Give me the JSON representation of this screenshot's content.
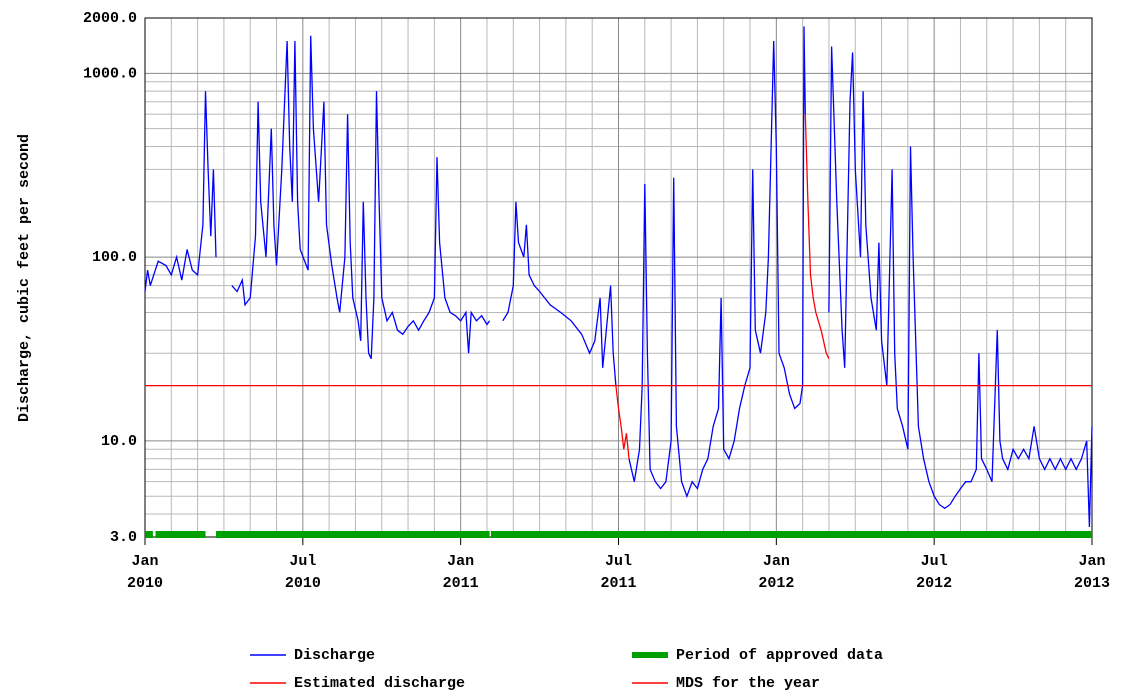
{
  "chart_data": {
    "type": "line",
    "y_label": "Discharge, cubic feet per second",
    "log_y": true,
    "ylim": [
      3,
      2000
    ],
    "yticks": [
      {
        "value": 3,
        "label": "3.0"
      },
      {
        "value": 10,
        "label": "10.0"
      },
      {
        "value": 100,
        "label": "100.0"
      },
      {
        "value": 1000,
        "label": "1000.0"
      },
      {
        "value": 2000,
        "label": "2000.0"
      }
    ],
    "y_minor_grid": [
      4,
      5,
      6,
      7,
      8,
      9,
      20,
      30,
      40,
      50,
      60,
      70,
      80,
      90,
      200,
      300,
      400,
      500,
      600,
      700,
      800,
      900
    ],
    "xlim": [
      0,
      36
    ],
    "xticks": [
      {
        "value": 0,
        "label": "Jan\n2010"
      },
      {
        "value": 6,
        "label": "Jul\n2010"
      },
      {
        "value": 12,
        "label": "Jan\n2011"
      },
      {
        "value": 18,
        "label": "Jul\n2011"
      },
      {
        "value": 24,
        "label": "Jan\n2012"
      },
      {
        "value": 30,
        "label": "Jul\n2012"
      },
      {
        "value": 36,
        "label": "Jan\n2013"
      }
    ],
    "x_minor_grid": [
      1,
      2,
      3,
      4,
      5,
      7,
      8,
      9,
      10,
      11,
      13,
      14,
      15,
      16,
      17,
      19,
      20,
      21,
      22,
      23,
      25,
      26,
      27,
      28,
      29,
      31,
      32,
      33,
      34,
      35
    ],
    "grid": true,
    "series": [
      {
        "name": "Discharge",
        "color": "#0000ff",
        "x": [
          0,
          0.1,
          0.2,
          0.5,
          0.8,
          1.0,
          1.2,
          1.4,
          1.6,
          1.8,
          2.0,
          2.2,
          2.3,
          2.4,
          2.5,
          2.6,
          2.7,
          3.0,
          3.3,
          3.5,
          3.7,
          3.8,
          4.0,
          4.2,
          4.3,
          4.4,
          4.6,
          4.8,
          4.9,
          5.0,
          5.2,
          5.4,
          5.5,
          5.6,
          5.7,
          5.8,
          5.9,
          6.2,
          6.3,
          6.4,
          6.6,
          6.8,
          6.9,
          7.1,
          7.3,
          7.4,
          7.6,
          7.7,
          7.8,
          7.9,
          8.1,
          8.2,
          8.3,
          8.4,
          8.5,
          8.6,
          8.7,
          8.8,
          8.9,
          9.0,
          9.2,
          9.4,
          9.6,
          9.8,
          10.0,
          10.2,
          10.4,
          10.6,
          10.8,
          11.0,
          11.1,
          11.2,
          11.4,
          11.6,
          11.8,
          12.0,
          12.2,
          12.3,
          12.4,
          12.6,
          12.8,
          13.0,
          13.1,
          13.3,
          13.6,
          13.8,
          14.0,
          14.1,
          14.2,
          14.4,
          14.5,
          14.6,
          14.8,
          15.0,
          15.4,
          15.8,
          16.2,
          16.6,
          16.9,
          17.1,
          17.3,
          17.4,
          17.6,
          17.7,
          17.8,
          17.9,
          18.2,
          18.4,
          18.6,
          18.8,
          18.9,
          19.0,
          19.1,
          19.2,
          19.4,
          19.6,
          19.8,
          20.0,
          20.1,
          20.2,
          20.4,
          20.6,
          20.8,
          21.0,
          21.2,
          21.4,
          21.6,
          21.8,
          21.9,
          22.0,
          22.2,
          22.4,
          22.6,
          22.8,
          23.0,
          23.1,
          23.2,
          23.4,
          23.6,
          23.7,
          23.9,
          24.0,
          24.1,
          24.3,
          24.5,
          24.7,
          24.9,
          25.0,
          25.05,
          25.1,
          25.5,
          26.0,
          26.1,
          26.3,
          26.5,
          26.6,
          26.8,
          26.9,
          27.0,
          27.2,
          27.3,
          27.4,
          27.6,
          27.8,
          27.9,
          28.0,
          28.2,
          28.4,
          28.5,
          28.6,
          28.8,
          29.0,
          29.1,
          29.2,
          29.4,
          29.6,
          29.8,
          30.0,
          30.2,
          30.4,
          30.6,
          30.8,
          31.0,
          31.2,
          31.4,
          31.6,
          31.7,
          31.8,
          32.0,
          32.2,
          32.4,
          32.5,
          32.6,
          32.8,
          33.0,
          33.2,
          33.4,
          33.6,
          33.8,
          34.0,
          34.2,
          34.4,
          34.6,
          34.8,
          35.0,
          35.2,
          35.4,
          35.6,
          35.8,
          35.9,
          36.0
        ],
        "values": [
          65,
          85,
          70,
          95,
          90,
          80,
          100,
          75,
          110,
          85,
          80,
          150,
          800,
          300,
          130,
          300,
          100,
          null,
          70,
          65,
          75,
          55,
          60,
          130,
          700,
          200,
          100,
          500,
          150,
          90,
          300,
          1500,
          400,
          200,
          1500,
          200,
          110,
          85,
          1600,
          500,
          200,
          700,
          150,
          90,
          60,
          50,
          100,
          600,
          120,
          60,
          45,
          35,
          200,
          60,
          30,
          28,
          60,
          800,
          200,
          60,
          45,
          50,
          40,
          38,
          42,
          45,
          40,
          45,
          50,
          60,
          350,
          120,
          60,
          50,
          48,
          45,
          50,
          30,
          50,
          45,
          48,
          43,
          45,
          null,
          45,
          50,
          70,
          200,
          120,
          100,
          150,
          80,
          70,
          65,
          55,
          50,
          45,
          38,
          30,
          35,
          60,
          25,
          50,
          70,
          30,
          20,
          null,
          8,
          6,
          9,
          20,
          250,
          30,
          7,
          6,
          5.5,
          6,
          10,
          270,
          12,
          6,
          5,
          6,
          5.5,
          7,
          8,
          12,
          15,
          60,
          9,
          8,
          10,
          15,
          20,
          25,
          300,
          40,
          30,
          50,
          100,
          1500,
          400,
          30,
          25,
          18,
          15,
          16,
          20,
          1800,
          600,
          null,
          50,
          1400,
          200,
          40,
          25,
          700,
          1300,
          300,
          100,
          800,
          150,
          60,
          40,
          120,
          35,
          20,
          300,
          30,
          15,
          12,
          9,
          400,
          100,
          12,
          8,
          6,
          5,
          4.5,
          4.3,
          4.5,
          5,
          5.5,
          6,
          6,
          7,
          30,
          8,
          7,
          6,
          40,
          10,
          8,
          7,
          9,
          8,
          9,
          8,
          12,
          8,
          7,
          8,
          7,
          8,
          7,
          8,
          7,
          8,
          10,
          3.4,
          12
        ]
      },
      {
        "name": "Estimated discharge",
        "color": "#ff0000",
        "x": [
          17.9,
          18.0,
          18.1,
          18.2,
          18.3,
          18.4,
          21.0,
          25.1,
          25.2,
          25.3,
          25.4,
          25.5,
          25.7,
          25.9,
          26.0
        ],
        "values": [
          20,
          15,
          12,
          9,
          11,
          8,
          null,
          600,
          200,
          80,
          60,
          50,
          40,
          30,
          28
        ]
      },
      {
        "name": "Period of approved data",
        "color": "#00a000",
        "ranges": [
          [
            0,
            0.3
          ],
          [
            0.4,
            2.3
          ],
          [
            2.7,
            13.1
          ],
          [
            13.15,
            36
          ]
        ]
      },
      {
        "name": "MDS for the year",
        "color": "#ff0000",
        "x": [
          0,
          36
        ],
        "values": [
          20,
          20
        ]
      }
    ]
  }
}
